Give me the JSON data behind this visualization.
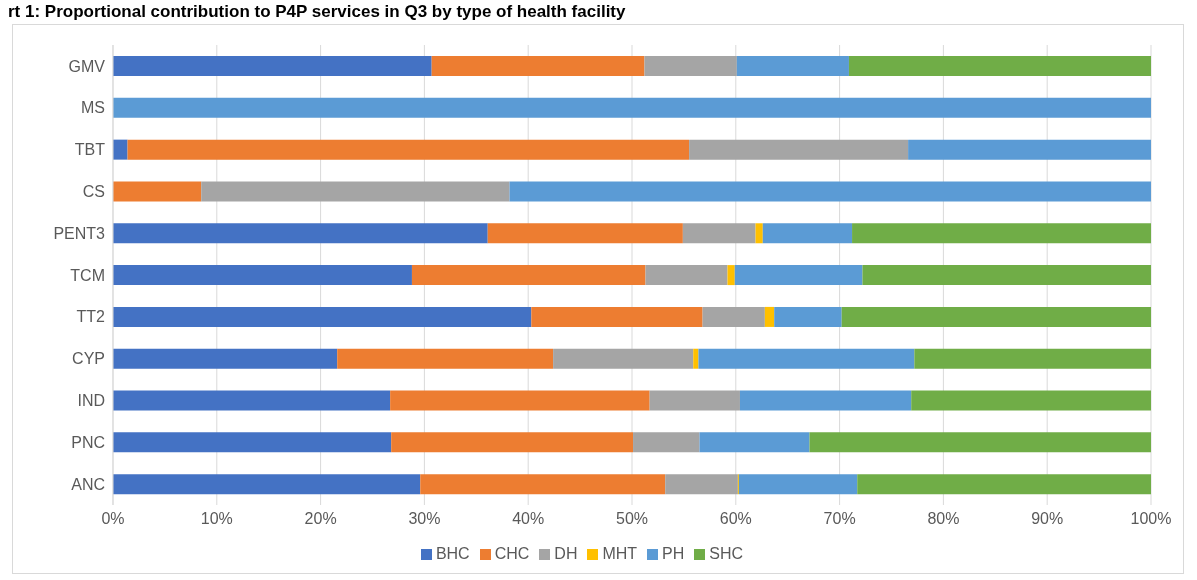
{
  "chart_data": {
    "type": "bar",
    "orientation": "horizontal",
    "stacked": true,
    "title": "rt 1: Proportional contribution to P4P services in Q3 by type of health facility",
    "categories": [
      "GMV",
      "MS",
      "TBT",
      "CS",
      "PENT3",
      "TCM",
      "TT2",
      "CYP",
      "IND",
      "PNC",
      "ANC"
    ],
    "series": [
      {
        "name": "BHC",
        "color": "#4472c4",
        "values": [
          30.7,
          0,
          1.4,
          0,
          36.1,
          28.8,
          40.3,
          21.6,
          26.7,
          26.8,
          29.6
        ]
      },
      {
        "name": "CHC",
        "color": "#ed7d31",
        "values": [
          20.5,
          0,
          54.1,
          8.5,
          18.8,
          22.5,
          16.5,
          20.8,
          25.0,
          23.3,
          23.6
        ]
      },
      {
        "name": "DH",
        "color": "#a5a5a5",
        "values": [
          8.9,
          0,
          21.1,
          29.7,
          7.0,
          7.9,
          6.0,
          13.5,
          8.7,
          6.4,
          7.0
        ]
      },
      {
        "name": "MHT",
        "color": "#ffc000",
        "values": [
          0,
          0,
          0,
          0,
          0.7,
          0.7,
          0.9,
          0.5,
          0,
          0,
          0.1
        ]
      },
      {
        "name": "PH",
        "color": "#5b9bd5",
        "values": [
          10.8,
          100,
          23.4,
          61.8,
          8.6,
          12.3,
          6.5,
          20.8,
          16.5,
          10.6,
          11.4
        ]
      },
      {
        "name": "SHC",
        "color": "#70ad47",
        "values": [
          29.1,
          0,
          0,
          0,
          28.8,
          27.8,
          29.8,
          22.8,
          23.1,
          32.9,
          28.3
        ]
      }
    ],
    "xlim": [
      0,
      100
    ],
    "xticks": [
      {
        "value": 0,
        "label": "0%"
      },
      {
        "value": 10,
        "label": "10%"
      },
      {
        "value": 20,
        "label": "20%"
      },
      {
        "value": 30,
        "label": "30%"
      },
      {
        "value": 40,
        "label": "40%"
      },
      {
        "value": 50,
        "label": "50%"
      },
      {
        "value": 60,
        "label": "60%"
      },
      {
        "value": 70,
        "label": "70%"
      },
      {
        "value": 80,
        "label": "80%"
      },
      {
        "value": 90,
        "label": "90%"
      },
      {
        "value": 100,
        "label": "100%"
      }
    ],
    "grid": "x",
    "legend": "bottom"
  }
}
